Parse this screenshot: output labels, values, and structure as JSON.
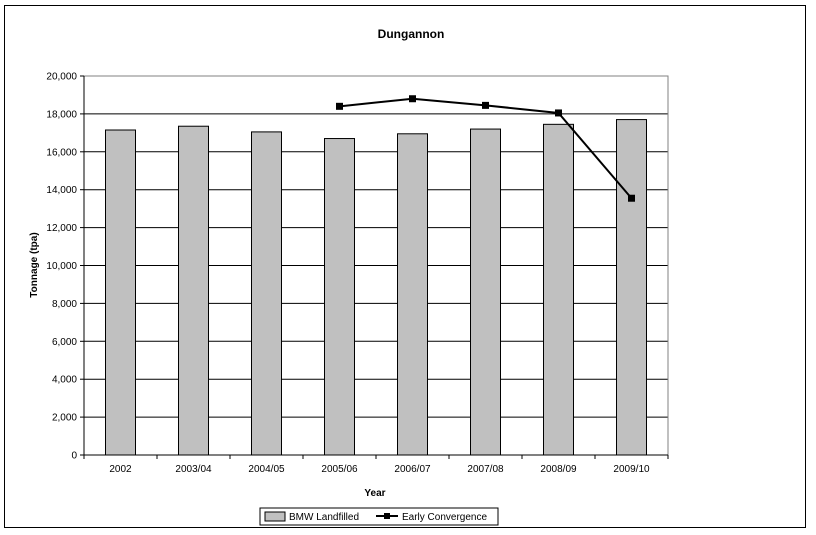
{
  "chart_data": {
    "type": "bar",
    "title": "Dungannon",
    "xlabel": "Year",
    "ylabel": "Tonnage (tpa)",
    "ylim": [
      0,
      20000
    ],
    "ytick_step": 2000,
    "ytick_labels": [
      "0",
      "2,000",
      "4,000",
      "6,000",
      "8,000",
      "10,000",
      "12,000",
      "14,000",
      "16,000",
      "18,000",
      "20,000"
    ],
    "categories": [
      "2002",
      "2003/04",
      "2004/05",
      "2005/06",
      "2006/07",
      "2007/08",
      "2008/09",
      "2009/10"
    ],
    "grid": true,
    "legend_position": "bottom",
    "series": [
      {
        "name": "BMW Landfilled",
        "kind": "bar",
        "color": "#c0c0c0",
        "values": [
          17150,
          17350,
          17050,
          16700,
          16950,
          17200,
          17450,
          17700
        ]
      },
      {
        "name": "Early Convergence",
        "kind": "line",
        "color": "#000000",
        "values": [
          null,
          null,
          null,
          18400,
          18800,
          18450,
          18050,
          13550
        ]
      }
    ]
  }
}
